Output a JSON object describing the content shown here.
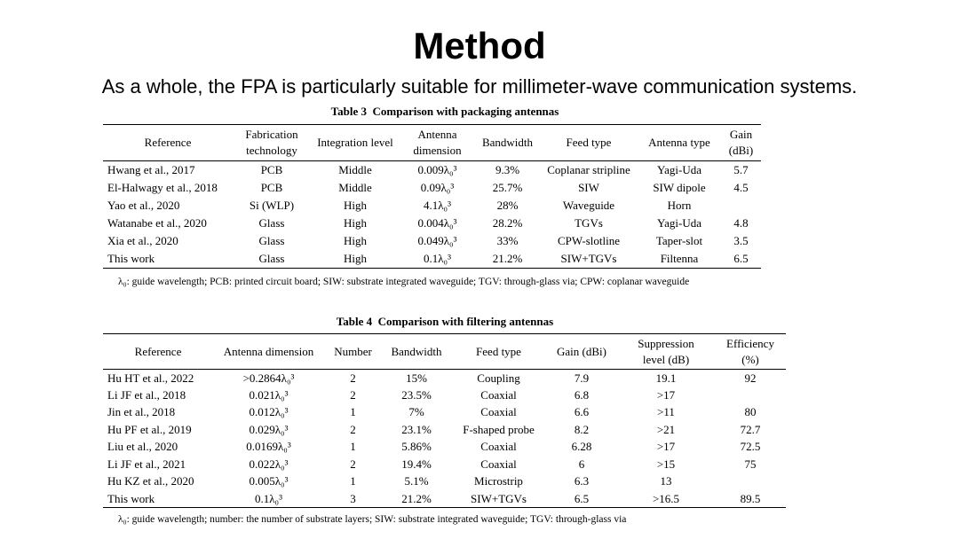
{
  "header": {
    "title": "Method",
    "subtitle": "As a whole, the FPA is particularly suitable for millimeter-wave communication systems."
  },
  "table3": {
    "caption": "Table 3  Comparison with packaging antennas",
    "columns": [
      [
        "Reference"
      ],
      [
        "Fabrication",
        "technology"
      ],
      [
        "Integration level"
      ],
      [
        "Antenna",
        "dimension"
      ],
      [
        "Bandwidth"
      ],
      [
        "Feed type"
      ],
      [
        "Antenna type"
      ],
      [
        "Gain (dBi)"
      ]
    ],
    "rows": [
      [
        "Hwang et al., 2017",
        "PCB",
        "Middle",
        "0.009λ₀³",
        "9.3%",
        "Coplanar stripline",
        "Yagi-Uda",
        "5.7"
      ],
      [
        "El-Halwagy et al., 2018",
        "PCB",
        "Middle",
        "0.09λ₀³",
        "25.7%",
        "SIW",
        "SIW dipole",
        "4.5"
      ],
      [
        "Yao et al., 2020",
        "Si (WLP)",
        "High",
        "4.1λ₀³",
        "28%",
        "Waveguide",
        "Horn",
        null
      ],
      [
        "Watanabe et al., 2020",
        "Glass",
        "High",
        "0.004λ₀³",
        "28.2%",
        "TGVs",
        "Yagi-Uda",
        "4.8"
      ],
      [
        "Xia et al., 2020",
        "Glass",
        "High",
        "0.049λ₀³",
        "33%",
        "CPW-slotline",
        "Taper-slot",
        "3.5"
      ],
      [
        "This work",
        "Glass",
        "High",
        "0.1λ₀³",
        "21.2%",
        "SIW+TGVs",
        "Filtenna",
        "6.5"
      ]
    ],
    "note": "λ₀: guide wavelength; PCB: printed circuit board; SIW: substrate integrated waveguide; TGV: through-glass via; CPW: coplanar waveguide"
  },
  "table4": {
    "caption": "Table 4  Comparison with filtering antennas",
    "columns": [
      [
        "Reference"
      ],
      [
        "Antenna dimension"
      ],
      [
        "Number"
      ],
      [
        "Bandwidth"
      ],
      [
        "Feed type"
      ],
      [
        "Gain (dBi)"
      ],
      [
        "Suppression",
        "level (dB)"
      ],
      [
        "Efficiency",
        "(%)"
      ]
    ],
    "rows": [
      [
        "Hu HT et al., 2022",
        ">0.2864λ₀³",
        "2",
        "15%",
        "Coupling",
        "7.9",
        "19.1",
        "92"
      ],
      [
        "Li JF et al., 2018",
        "0.021λ₀³",
        "2",
        "23.5%",
        "Coaxial",
        "6.8",
        ">17",
        null
      ],
      [
        "Jin et al., 2018",
        "0.012λ₀³",
        "1",
        "7%",
        "Coaxial",
        "6.6",
        ">11",
        "80"
      ],
      [
        "Hu PF et al., 2019",
        "0.029λ₀³",
        "2",
        "23.1%",
        "F-shaped probe",
        "8.2",
        ">21",
        "72.7"
      ],
      [
        "Liu et al., 2020",
        "0.0169λ₀³",
        "1",
        "5.86%",
        "Coaxial",
        "6.28",
        ">17",
        "72.5"
      ],
      [
        "Li JF et al., 2021",
        "0.022λ₀³",
        "2",
        "19.4%",
        "Coaxial",
        "6",
        ">15",
        "75"
      ],
      [
        "Hu KZ et al., 2020",
        "0.005λ₀³",
        "1",
        "5.1%",
        "Microstrip",
        "6.3",
        "13",
        null
      ],
      [
        "This work",
        "0.1λ₀³",
        "3",
        "21.2%",
        "SIW+TGVs",
        "6.5",
        ">16.5",
        "89.5"
      ]
    ],
    "note": "λ₀: guide wavelength; number: the number of substrate layers; SIW: substrate integrated waveguide; TGV: through-glass via"
  }
}
